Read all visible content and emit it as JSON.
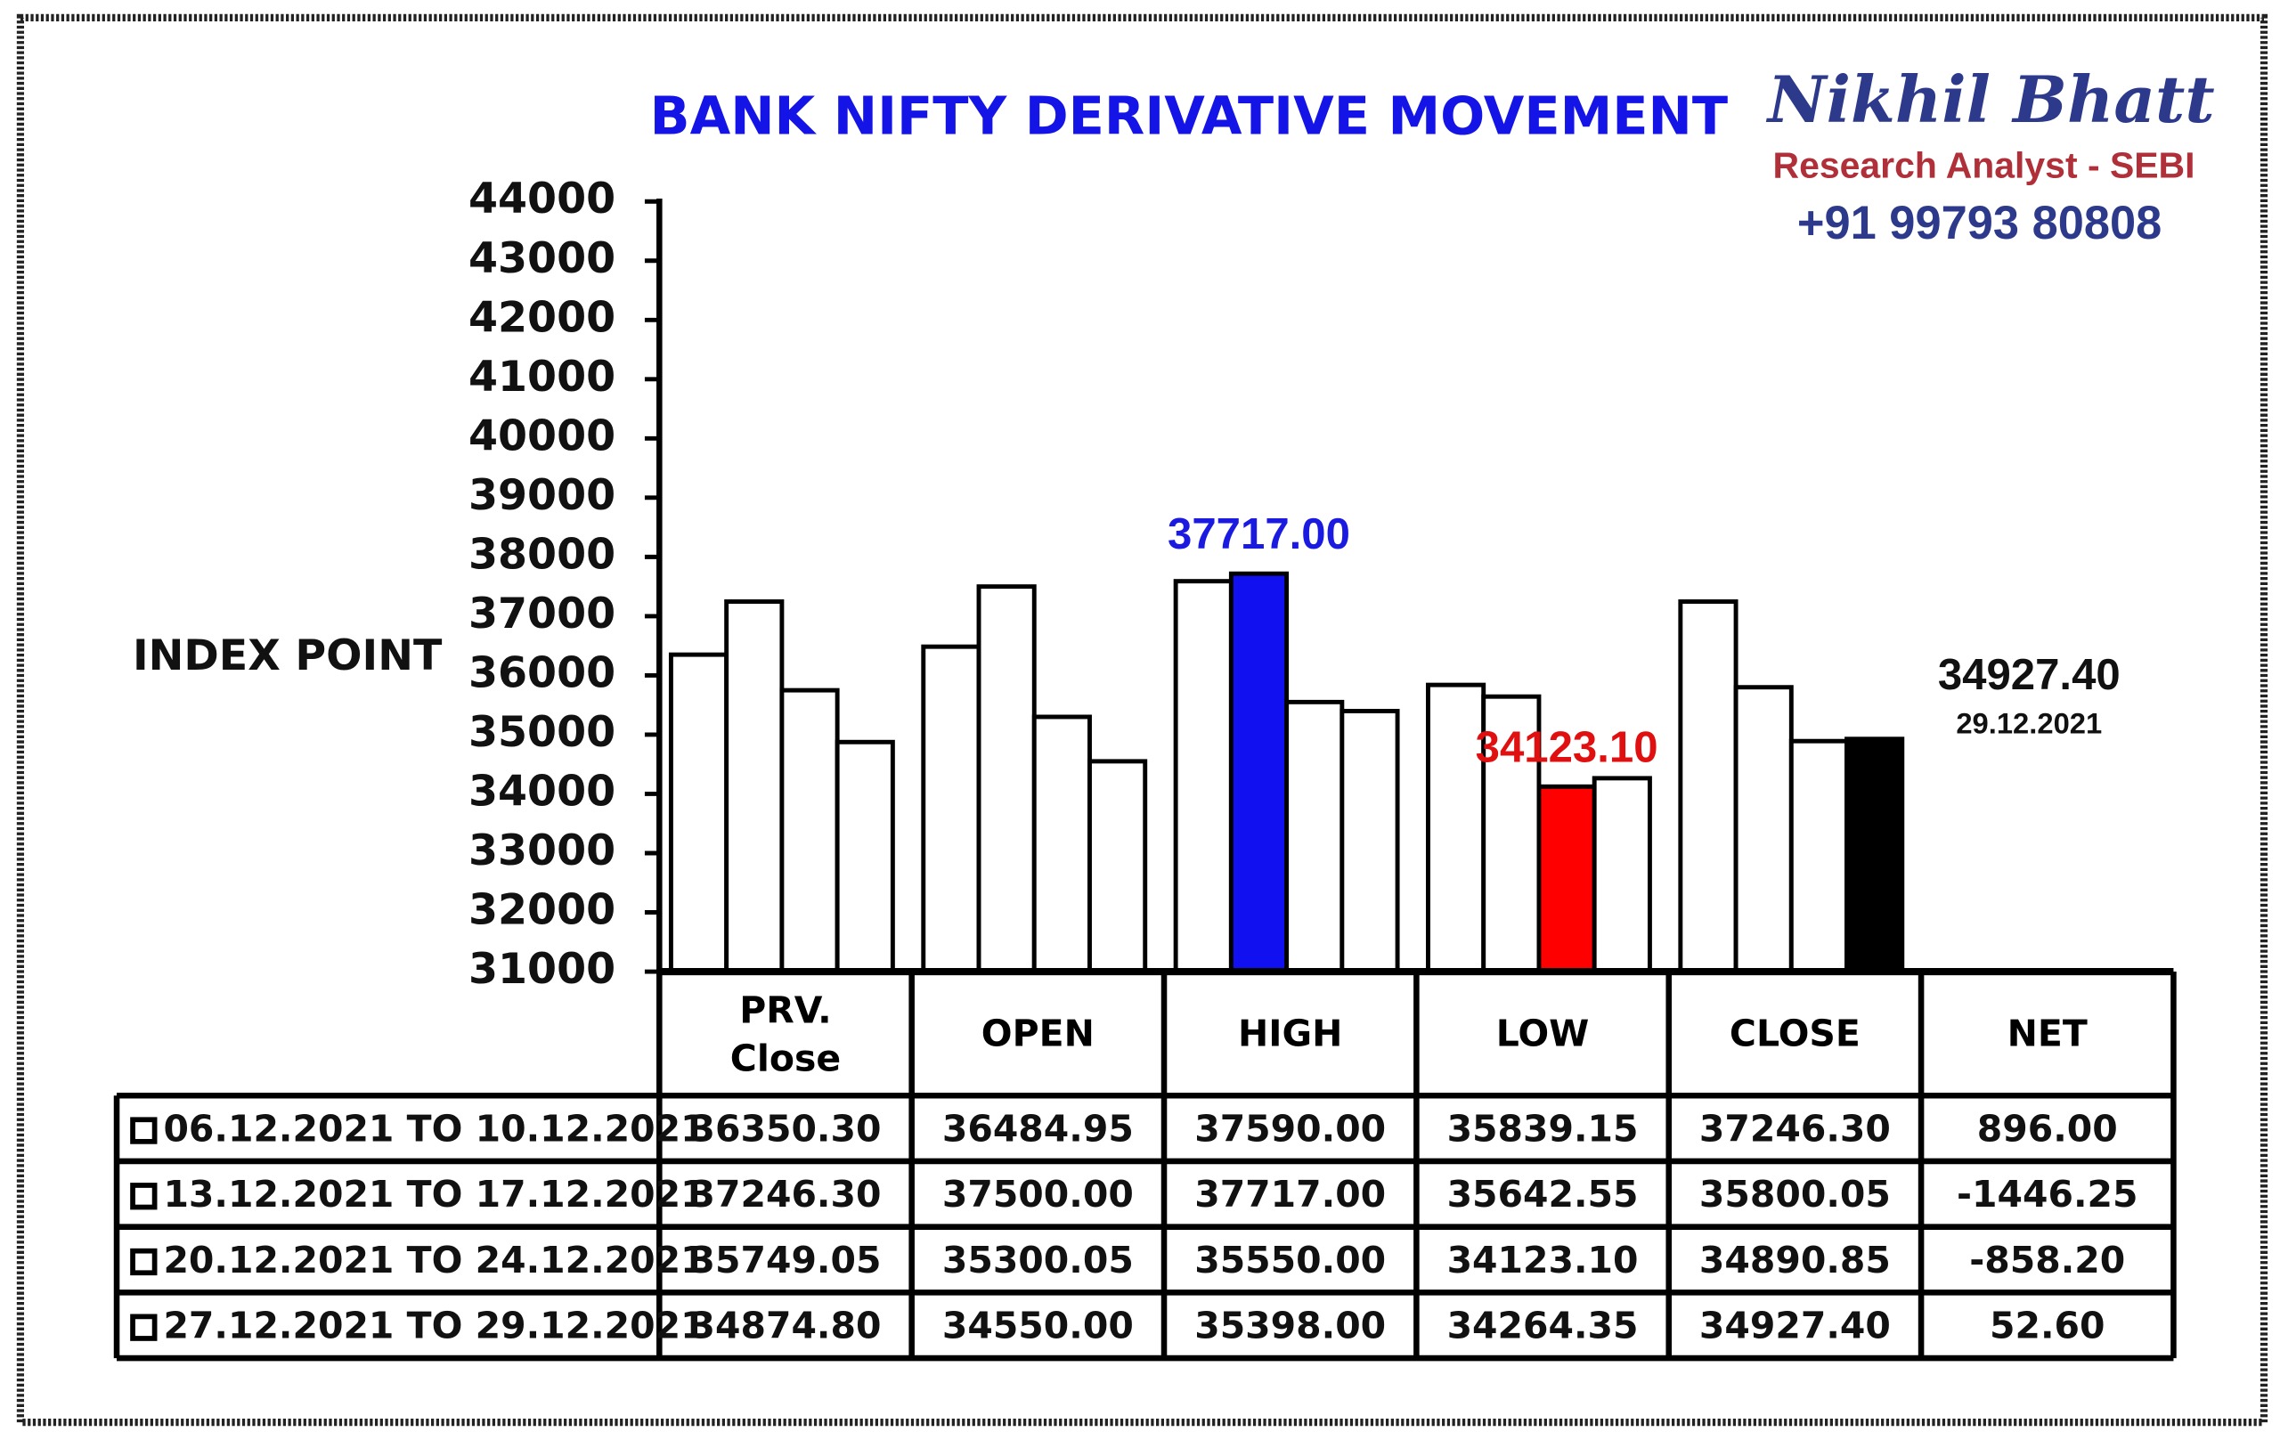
{
  "chart_data": {
    "type": "bar",
    "title": "BANK NIFTY DERIVATIVE MOVEMENT",
    "brand": {
      "name": "Nikhil Bhatt",
      "role": "Research Analyst - SEBI",
      "phone": "+91 99793 80808"
    },
    "y_label": "INDEX POINT",
    "categories": [
      "PRV. Close",
      "OPEN",
      "HIGH",
      "LOW",
      "CLOSE"
    ],
    "net_header": "NET",
    "ylim": [
      31000,
      44000
    ],
    "yticks": [
      31000,
      32000,
      33000,
      34000,
      35000,
      36000,
      37000,
      38000,
      39000,
      40000,
      41000,
      42000,
      43000,
      44000
    ],
    "series": [
      {
        "name": "06.12.2021 TO 10.12.2021",
        "colors": [
          "#ffffff",
          "#ffffff",
          "#ffffff",
          "#ffffff",
          "#ffffff"
        ],
        "values": [
          36350.3,
          36484.95,
          37590,
          35839.15,
          37246.3
        ],
        "value_labels": [
          "36350.30",
          "36484.95",
          "37590.00",
          "35839.15",
          "37246.30"
        ],
        "net": 896,
        "net_label": "896.00"
      },
      {
        "name": "13.12.2021 TO 17.12.2021",
        "colors": [
          "#ffffff",
          "#ffffff",
          "#1010f0",
          "#ffffff",
          "#ffffff"
        ],
        "values": [
          37246.3,
          37500,
          37717,
          35642.55,
          35800.05
        ],
        "value_labels": [
          "37246.30",
          "37500.00",
          "37717.00",
          "35642.55",
          "35800.05"
        ],
        "net": -1446.25,
        "net_label": "-1446.25"
      },
      {
        "name": "20.12.2021 TO 24.12.2021",
        "colors": [
          "#ffffff",
          "#ffffff",
          "#ffffff",
          "#ff0000",
          "#ffffff"
        ],
        "values": [
          35749.05,
          35300.05,
          35550,
          34123.1,
          34890.85
        ],
        "value_labels": [
          "35749.05",
          "35300.05",
          "35550.00",
          "34123.10",
          "34890.85"
        ],
        "net": -858.2,
        "net_label": "-858.20"
      },
      {
        "name": "27.12.2021 TO 29.12.2021",
        "colors": [
          "#ffffff",
          "#ffffff",
          "#ffffff",
          "#ffffff",
          "#000000"
        ],
        "values": [
          34874.8,
          34550,
          35398,
          34264.35,
          34927.4
        ],
        "value_labels": [
          "34874.80",
          "34550.00",
          "35398.00",
          "34264.35",
          "34927.40"
        ],
        "net": 52.6,
        "net_label": "52.60"
      }
    ],
    "callouts": [
      {
        "series": 1,
        "index": 2,
        "color": "#1a1ae0"
      },
      {
        "series": 2,
        "index": 3,
        "color": "#e01010"
      },
      {
        "series": 3,
        "index": 4,
        "color": "#111111",
        "note": "29.12.2021"
      }
    ]
  }
}
